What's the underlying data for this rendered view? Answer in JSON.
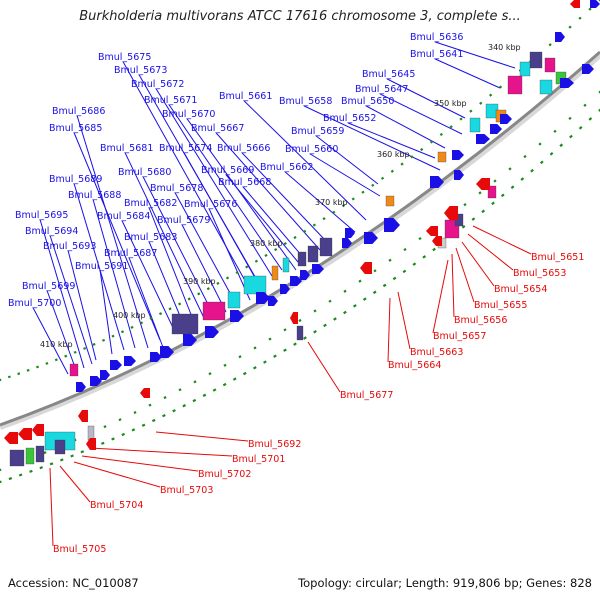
{
  "title": "Burkholderia multivorans ATCC 17616 chromosome 3, complete s...",
  "footer": {
    "accession": "Accession: NC_010087",
    "summary": "Topology: circular; Length: 919,806 bp; Genes: 828"
  },
  "colors": {
    "forward": "#1a10e6",
    "reverse": "#e60a0a",
    "backbone": "#888888",
    "tick_dot": "#1b8a1b",
    "cog_cyan": "#19d8e0",
    "cog_purple": "#4a3f8a",
    "cog_pink": "#e6148c",
    "cog_orange": "#ee8a1a",
    "cog_green": "#3cc43c"
  },
  "ticks": [
    "340 kbp",
    "350 kbp",
    "360 kbp",
    "370 kbp",
    "380 kbp",
    "390 kbp",
    "400 kbp",
    "410 kbp"
  ],
  "forward_labels": [
    "Bmul_5636",
    "Bmul_5641",
    "Bmul_5645",
    "Bmul_5647",
    "Bmul_5650",
    "Bmul_5652",
    "Bmul_5658",
    "Bmul_5659",
    "Bmul_5660",
    "Bmul_5661",
    "Bmul_5662",
    "Bmul_5666",
    "Bmul_5667",
    "Bmul_5668",
    "Bmul_5669",
    "Bmul_5670",
    "Bmul_5671",
    "Bmul_5672",
    "Bmul_5673",
    "Bmul_5674",
    "Bmul_5675",
    "Bmul_5676",
    "Bmul_5678",
    "Bmul_5679",
    "Bmul_5680",
    "Bmul_5681",
    "Bmul_5682",
    "Bmul_5683",
    "Bmul_5684",
    "Bmul_5685",
    "Bmul_5686",
    "Bmul_5687",
    "Bmul_5688",
    "Bmul_5689",
    "Bmul_5691",
    "Bmul_5693",
    "Bmul_5694",
    "Bmul_5695",
    "Bmul_5699",
    "Bmul_5700"
  ],
  "reverse_labels": [
    "Bmul_5651",
    "Bmul_5653",
    "Bmul_5654",
    "Bmul_5655",
    "Bmul_5656",
    "Bmul_5657",
    "Bmul_5663",
    "Bmul_5664",
    "Bmul_5677",
    "Bmul_5692",
    "Bmul_5701",
    "Bmul_5702",
    "Bmul_5703",
    "Bmul_5704",
    "Bmul_5705"
  ]
}
